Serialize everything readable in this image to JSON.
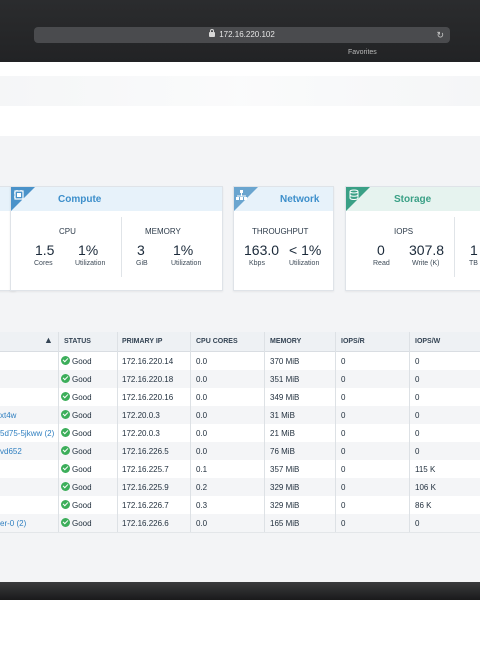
{
  "browser": {
    "url": "172.16.220.102",
    "favorites_label": "Favorites"
  },
  "cards": {
    "compute": {
      "title": "Compute",
      "icon": "chip-icon",
      "cpu_label": "CPU",
      "cpu_cores_value": "1.5",
      "cpu_cores_label": "Cores",
      "cpu_util_value": "1%",
      "cpu_util_label": "Utilization",
      "memory_label": "MEMORY",
      "memory_value": "3",
      "memory_unit": "GiB",
      "memory_util_value": "1%",
      "memory_util_label": "Utilization"
    },
    "network": {
      "title": "Network",
      "icon": "network-topology-icon",
      "throughput_label": "THROUGHPUT",
      "throughput_value": "163.0",
      "throughput_unit": "Kbps",
      "util_value": "< 1%",
      "util_label": "Utilization"
    },
    "storage": {
      "title": "Storage",
      "icon": "database-icon",
      "iops_label": "IOPS",
      "read_value": "0",
      "read_label": "Read",
      "write_value": "307.8",
      "write_label": "Write (K)",
      "extra_value": "1",
      "extra_label": "TB"
    }
  },
  "table": {
    "columns": [
      "STATUS",
      "PRIMARY IP",
      "CPU CORES",
      "MEMORY",
      "IOPS/R",
      "IOPS/W"
    ],
    "rows": [
      {
        "name": "",
        "status": "Good",
        "ip": "172.16.220.14",
        "cpu": "0.0",
        "memory": "370 MiB",
        "iops_r": "0",
        "iops_w": "0"
      },
      {
        "name": "",
        "status": "Good",
        "ip": "172.16.220.18",
        "cpu": "0.0",
        "memory": "351 MiB",
        "iops_r": "0",
        "iops_w": "0"
      },
      {
        "name": "",
        "status": "Good",
        "ip": "172.16.220.16",
        "cpu": "0.0",
        "memory": "349 MiB",
        "iops_r": "0",
        "iops_w": "0"
      },
      {
        "name": "xt4w",
        "status": "Good",
        "ip": "172.20.0.3",
        "cpu": "0.0",
        "memory": "31 MiB",
        "iops_r": "0",
        "iops_w": "0"
      },
      {
        "name": "5d75-5jkww (2)",
        "status": "Good",
        "ip": "172.20.0.3",
        "cpu": "0.0",
        "memory": "21 MiB",
        "iops_r": "0",
        "iops_w": "0"
      },
      {
        "name": "vd652",
        "status": "Good",
        "ip": "172.16.226.5",
        "cpu": "0.0",
        "memory": "76 MiB",
        "iops_r": "0",
        "iops_w": "0"
      },
      {
        "name": "",
        "status": "Good",
        "ip": "172.16.225.7",
        "cpu": "0.1",
        "memory": "357 MiB",
        "iops_r": "0",
        "iops_w": "115 K"
      },
      {
        "name": "",
        "status": "Good",
        "ip": "172.16.225.9",
        "cpu": "0.2",
        "memory": "329 MiB",
        "iops_r": "0",
        "iops_w": "106 K"
      },
      {
        "name": "",
        "status": "Good",
        "ip": "172.16.226.7",
        "cpu": "0.3",
        "memory": "329 MiB",
        "iops_r": "0",
        "iops_w": "86 K"
      },
      {
        "name": "er-0 (2)",
        "status": "Good",
        "ip": "172.16.226.6",
        "cpu": "0.0",
        "memory": "165 MiB",
        "iops_r": "0",
        "iops_w": "0"
      }
    ]
  },
  "colors": {
    "compute_accent": "#3d8fcb",
    "network_accent": "#3d8fcb",
    "storage_accent": "#3aa086",
    "status_good": "#3cae5a",
    "link": "#2f7fc0"
  }
}
